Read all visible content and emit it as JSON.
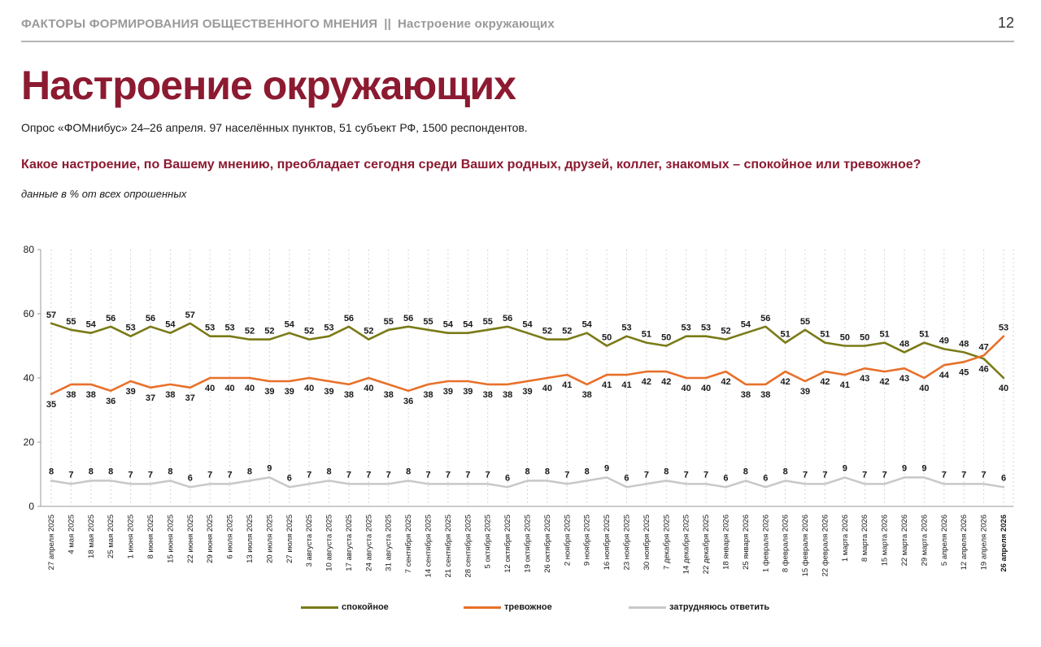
{
  "header": {
    "section": "ФАКТОРЫ ФОРМИРОВАНИЯ ОБЩЕСТВЕННОГО МНЕНИЯ",
    "separator": "||",
    "subsection": "Настроение окружающих",
    "page_number": "12"
  },
  "title": "Настроение окружающих",
  "subtitle": "Опрос «ФОМнибус» 24–26 апреля. 97 населённых пунктов, 51 субъект РФ, 1500 респондентов.",
  "question": "Какое настроение, по Вашему мнению, преобладает сегодня среди Ваших родных, друзей, коллег, знакомых – спокойное или тревожное?",
  "note": "данные в % от всех опрошенных",
  "colors": {
    "calm": "#7a7a18",
    "anxious": "#e8702a",
    "hard": "#c8c8c8",
    "title": "#8c1a31"
  },
  "chart_data": {
    "type": "line",
    "ylim": [
      0,
      80
    ],
    "yticks": [
      0,
      20,
      40,
      60,
      80
    ],
    "grid": "vertical dashed",
    "legend": "bottom",
    "x": [
      "27 апреля 2025",
      "4 мая 2025",
      "18 мая 2025",
      "25 мая 2025",
      "1 июня 2025",
      "8 июня 2025",
      "15 июня 2025",
      "22 июня 2025",
      "29 июня 2025",
      "6 июля 2025",
      "13 июля 2025",
      "20 июля 2025",
      "27 июля 2025",
      "3 августа 2025",
      "10 августа 2025",
      "17 августа 2025",
      "24 августа 2025",
      "31 августа 2025",
      "7 сентября 2025",
      "14 сентября 2025",
      "21 сентября 2025",
      "28 сентября 2025",
      "5 октября 2025",
      "12 октября 2025",
      "19 октября 2025",
      "26 октября 2025",
      "2 ноября 2025",
      "9 ноября 2025",
      "16 ноября 2025",
      "23 ноября 2025",
      "30 ноября 2025",
      "7 декабря 2025",
      "14 декабря 2025",
      "22 декабря 2025",
      "18 января 2026",
      "25 января 2026",
      "1 февраля 2026",
      "8 февраля 2026",
      "15 февраля 2026",
      "22 февраля 2026",
      "1 марта 2026",
      "8 марта 2026",
      "15 марта 2026",
      "22 марта 2026",
      "29 марта 2026",
      "5 апреля 2026",
      "12 апреля 2026",
      "19 апреля 2026",
      "26 апреля 2026"
    ],
    "highlight_last": true,
    "series": [
      {
        "key": "calm",
        "name": "спокойное",
        "values": [
          57,
          55,
          54,
          56,
          53,
          56,
          54,
          57,
          53,
          53,
          52,
          52,
          54,
          52,
          53,
          56,
          52,
          55,
          56,
          55,
          54,
          54,
          55,
          56,
          54,
          52,
          52,
          54,
          50,
          53,
          51,
          50,
          53,
          53,
          52,
          54,
          56,
          51,
          55,
          51,
          50,
          50,
          51,
          48,
          51,
          49,
          48,
          46,
          40
        ]
      },
      {
        "key": "anxious",
        "name": "тревожное",
        "values": [
          35,
          38,
          38,
          36,
          39,
          37,
          38,
          37,
          40,
          40,
          40,
          39,
          39,
          40,
          39,
          38,
          40,
          38,
          36,
          38,
          39,
          39,
          38,
          38,
          39,
          40,
          41,
          38,
          41,
          41,
          42,
          42,
          40,
          40,
          42,
          38,
          38,
          42,
          39,
          42,
          41,
          43,
          42,
          43,
          40,
          44,
          45,
          47,
          53
        ]
      },
      {
        "key": "hard",
        "name": "затрудняюсь ответить",
        "values": [
          8,
          7,
          8,
          8,
          7,
          7,
          8,
          6,
          7,
          7,
          8,
          9,
          6,
          7,
          8,
          7,
          7,
          7,
          8,
          7,
          7,
          7,
          7,
          6,
          8,
          8,
          7,
          8,
          9,
          6,
          7,
          8,
          7,
          7,
          6,
          8,
          6,
          8,
          7,
          7,
          9,
          7,
          7,
          9,
          9,
          7,
          7,
          7,
          6
        ]
      }
    ]
  }
}
